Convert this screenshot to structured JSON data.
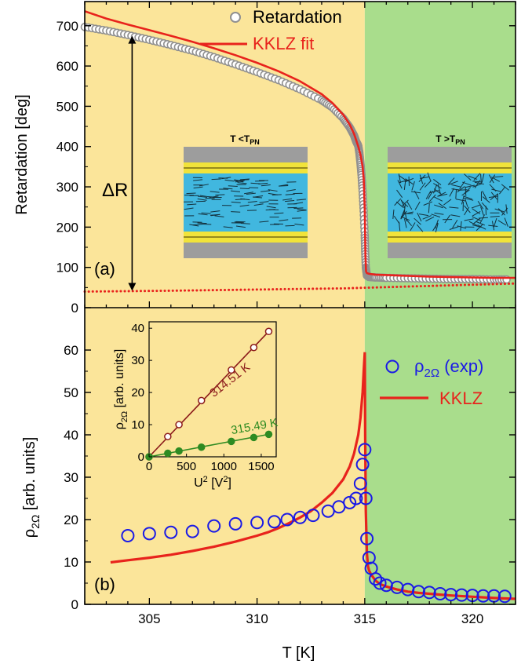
{
  "chart_data": [
    {
      "type": "scatter",
      "panel_label": "(a)",
      "xlim": [
        302,
        322
      ],
      "ylim": [
        0,
        760
      ],
      "yticks": [
        0,
        100,
        200,
        300,
        400,
        500,
        600,
        700
      ],
      "ylabel": "Retardation [deg]",
      "xlabel": "",
      "shaded_regions": [
        {
          "x": [
            302,
            315
          ],
          "color": "#fbe59a"
        },
        {
          "x": [
            315,
            322
          ],
          "color": "#a9dd8c"
        }
      ],
      "legend": {
        "placement": "top-right",
        "entries": [
          "Retardation",
          "KKLZ fit"
        ]
      },
      "annotations": {
        "delta_label": "ΔR",
        "delta_arrow": {
          "x": 304.2,
          "y_from": 42,
          "y_to": 675
        },
        "inset_left_label_main": "T <T",
        "inset_left_label_sub": "PN",
        "inset_right_label_main": "T >T",
        "inset_right_label_sub": "PN"
      },
      "series": [
        {
          "name": "Retardation",
          "style": "open-circles",
          "color": "#909090",
          "x": [
            302.0,
            303.0,
            304.0,
            305.0,
            306.0,
            307.0,
            308.0,
            309.0,
            310.0,
            311.0,
            312.0,
            313.0,
            313.5,
            314.0,
            314.3,
            314.5,
            314.6,
            314.7,
            314.75,
            314.8,
            314.85,
            314.9,
            314.95,
            315.0,
            315.02,
            315.05,
            315.1,
            315.2,
            315.5,
            316.0,
            317.0,
            318.0,
            319.0,
            320.0,
            321.0,
            321.7
          ],
          "y": [
            697,
            688,
            677,
            665,
            652,
            638,
            622,
            604,
            585,
            565,
            542,
            515,
            497,
            470,
            448,
            428,
            413,
            402,
            385,
            360,
            330,
            290,
            240,
            180,
            140,
            100,
            80,
            76,
            75,
            74,
            73,
            72,
            71,
            71,
            70,
            70
          ]
        },
        {
          "name": "KKLZ fit",
          "style": "line",
          "color": "#e8231c",
          "x": [
            302.0,
            303.0,
            304.0,
            305.0,
            306.0,
            307.0,
            308.0,
            309.0,
            310.0,
            311.0,
            312.0,
            313.0,
            313.5,
            314.0,
            314.3,
            314.5,
            314.6,
            314.7,
            314.8,
            314.9,
            314.95,
            315.0,
            315.03,
            315.06,
            315.1,
            315.2,
            315.5,
            316.0,
            317.0,
            318.0,
            319.0,
            320.0,
            321.0,
            322.0
          ],
          "y": [
            736,
            718,
            703,
            689,
            675,
            660,
            644,
            627,
            608,
            587,
            562,
            530,
            508,
            479,
            455,
            432,
            416,
            400,
            380,
            350,
            320,
            240,
            130,
            90,
            86,
            84,
            82,
            81,
            79,
            77,
            76,
            75,
            74,
            74
          ]
        },
        {
          "name": "",
          "style": "dotted-line",
          "color": "#e8231c",
          "x": [
            302,
            306,
            310,
            314,
            318,
            322
          ],
          "y": [
            40,
            42,
            45,
            48,
            54,
            60
          ]
        }
      ]
    },
    {
      "type": "scatter",
      "panel_label": "(b)",
      "xlim": [
        302,
        322
      ],
      "ylim": [
        0,
        70
      ],
      "xticks": [
        305,
        310,
        315,
        320
      ],
      "yticks": [
        0,
        10,
        20,
        30,
        40,
        50,
        60
      ],
      "xlabel": "T [K]",
      "ylabel_main": "ρ",
      "ylabel_sub": "2Ω",
      "ylabel_suffix": " [arb. units]",
      "shaded_regions": [
        {
          "x": [
            302,
            315
          ],
          "color": "#fbe59a"
        },
        {
          "x": [
            315,
            322
          ],
          "color": "#a9dd8c"
        }
      ],
      "legend": {
        "placement": "right",
        "entry1_main": "ρ",
        "entry1_sub": "2Ω",
        "entry1_suffix": " (exp)",
        "entry2": "KKLZ"
      },
      "series": [
        {
          "name": "ρ2Ω (exp)",
          "style": "open-circles",
          "color": "#1a1ae6",
          "x": [
            304,
            305,
            306,
            307,
            308,
            309,
            310,
            310.8,
            311.4,
            312,
            312.6,
            313.3,
            313.8,
            314.3,
            314.6,
            314.8,
            314.9,
            315.0,
            315.05,
            315.1,
            315.2,
            315.3,
            315.5,
            315.7,
            316.0,
            316.5,
            317.0,
            317.5,
            318.0,
            318.5,
            319.0,
            319.5,
            320.0,
            320.5,
            321.0,
            321.5
          ],
          "y": [
            16.2,
            16.7,
            17.0,
            17.2,
            18.5,
            19.0,
            19.3,
            19.5,
            20.0,
            20.5,
            21.0,
            22.0,
            23.0,
            24.0,
            25.0,
            28.5,
            33.0,
            36.5,
            25.0,
            15.5,
            11.0,
            8.5,
            6.0,
            5.0,
            4.5,
            4.0,
            3.5,
            3.0,
            2.8,
            2.5,
            2.3,
            2.2,
            2.1,
            2.0,
            2.0,
            1.9
          ]
        },
        {
          "name": "KKLZ",
          "style": "line",
          "color": "#e8231c",
          "x": [
            303.2,
            304,
            305,
            306,
            307,
            308,
            309,
            310,
            310.5,
            311,
            311.5,
            312,
            312.5,
            313,
            313.5,
            314,
            314.3,
            314.5,
            314.7,
            314.8,
            314.9,
            314.95,
            315.0,
            315.02,
            315.05,
            315.1,
            315.15,
            315.2,
            315.3,
            315.5,
            315.7,
            316,
            316.5,
            317,
            317.5,
            318,
            318.5,
            319,
            320,
            321,
            322
          ],
          "y": [
            9.9,
            10.4,
            11.0,
            11.7,
            12.6,
            13.6,
            14.8,
            16.2,
            17.0,
            18.0,
            19.2,
            20.5,
            22.0,
            24.0,
            26.3,
            29.5,
            32.5,
            35.5,
            40.0,
            44.0,
            50.0,
            55.0,
            59.5,
            40.0,
            22.0,
            12.0,
            9.0,
            8.0,
            7.0,
            5.6,
            4.8,
            4.2,
            3.5,
            3.0,
            2.7,
            2.5,
            2.3,
            2.1,
            1.8,
            1.5,
            1.3
          ]
        }
      ],
      "inset": {
        "xlim": [
          0,
          1700
        ],
        "ylim": [
          0,
          42
        ],
        "xticks": [
          0,
          500,
          1000,
          1500
        ],
        "yticks": [
          0,
          10,
          20,
          30,
          40
        ],
        "xlabel_main": "U",
        "xlabel_sup": "2",
        "xlabel_mid": " [V",
        "xlabel_sup2": "2",
        "xlabel_end": "]",
        "ylabel_main": "ρ",
        "ylabel_sub": "2Ω",
        "ylabel_suffix": " [arb. units]",
        "series": [
          {
            "name": "314.51 K",
            "style": "open-circles-line",
            "color": "#8b1a1a",
            "x": [
              0,
              250,
              400,
              700,
              1100,
              1400,
              1600
            ],
            "y": [
              0,
              6.3,
              10.0,
              17.5,
              27.0,
              34.0,
              39.0
            ]
          },
          {
            "name": "315.49 K",
            "style": "filled-circles-line",
            "color": "#2e8b22",
            "x": [
              0,
              250,
              400,
              700,
              1100,
              1400,
              1600
            ],
            "y": [
              0,
              1.1,
              1.8,
              3.0,
              4.8,
              6.0,
              7.0
            ]
          }
        ]
      }
    }
  ]
}
